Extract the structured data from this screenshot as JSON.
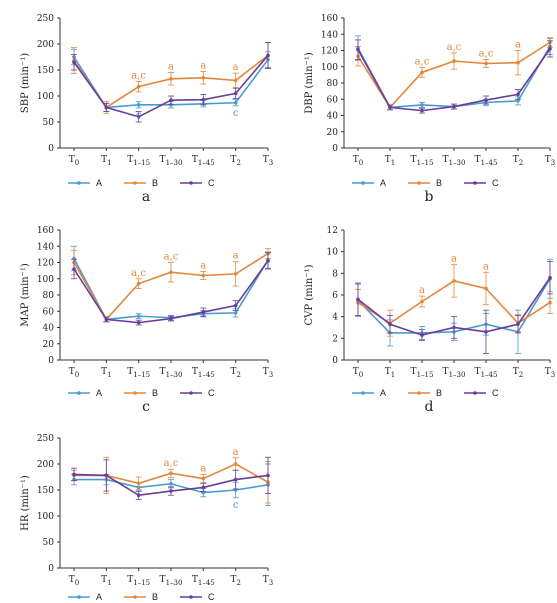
{
  "chart_data": [
    {
      "type": "line",
      "panel_label": "a",
      "ylabel": "SBP (min⁻¹)",
      "ylim": [
        0,
        250
      ],
      "yticks": [
        0,
        50,
        100,
        150,
        200,
        250
      ],
      "categories": [
        "T0",
        "T1",
        "T1-15",
        "T1-30",
        "T1-45",
        "T2",
        "T3"
      ],
      "series": [
        {
          "name": "A",
          "values": [
            175,
            78,
            83,
            83,
            85,
            87,
            170
          ],
          "errors": [
            15,
            8,
            6,
            6,
            6,
            6,
            15
          ]
        },
        {
          "name": "B",
          "values": [
            168,
            78,
            118,
            133,
            135,
            130,
            178
          ],
          "errors": [
            25,
            12,
            10,
            12,
            12,
            14,
            25
          ]
        },
        {
          "name": "C",
          "values": [
            165,
            78,
            60,
            92,
            93,
            105,
            178
          ],
          "errors": [
            15,
            8,
            10,
            8,
            10,
            10,
            25
          ]
        }
      ],
      "annotations": [
        {
          "x_index": 2,
          "text": "a,c",
          "series": "B"
        },
        {
          "x_index": 3,
          "text": "a",
          "series": "B"
        },
        {
          "x_index": 4,
          "text": "a",
          "series": "B"
        },
        {
          "x_index": 5,
          "text": "a",
          "series": "B"
        },
        {
          "x_index": 2,
          "text": "c",
          "series": "A"
        },
        {
          "x_index": 5,
          "text": "c",
          "series": "A"
        }
      ]
    },
    {
      "type": "line",
      "panel_label": "b",
      "ylabel": "DBP (min⁻¹)",
      "ylim": [
        0,
        160
      ],
      "yticks": [
        0,
        20,
        40,
        60,
        80,
        100,
        120,
        140,
        160
      ],
      "categories": [
        "T0",
        "T1",
        "T1-15",
        "T1-30",
        "T1-45",
        "T2",
        "T3"
      ],
      "series": [
        {
          "name": "A",
          "values": [
            123,
            50,
            53,
            51,
            56,
            58,
            125
          ],
          "errors": [
            15,
            3,
            3,
            3,
            4,
            5,
            10
          ]
        },
        {
          "name": "B",
          "values": [
            113,
            50,
            93,
            107,
            104,
            105,
            130
          ],
          "errors": [
            12,
            3,
            6,
            10,
            5,
            15,
            6
          ]
        },
        {
          "name": "C",
          "values": [
            121,
            50,
            46,
            51,
            59,
            66,
            122
          ],
          "errors": [
            12,
            3,
            3,
            3,
            5,
            6,
            10
          ]
        }
      ],
      "annotations": [
        {
          "x_index": 2,
          "text": "a,c",
          "series": "B"
        },
        {
          "x_index": 3,
          "text": "a,c",
          "series": "B"
        },
        {
          "x_index": 4,
          "text": "a,c",
          "series": "B"
        },
        {
          "x_index": 5,
          "text": "a",
          "series": "B"
        }
      ]
    },
    {
      "type": "line",
      "panel_label": "c",
      "ylabel": "MAP (min⁻¹)",
      "ylim": [
        0,
        160
      ],
      "yticks": [
        0,
        20,
        40,
        60,
        80,
        100,
        120,
        140,
        160
      ],
      "categories": [
        "T0",
        "T1",
        "T1-15",
        "T1-30",
        "T1-45",
        "T2",
        "T3"
      ],
      "series": [
        {
          "name": "A",
          "values": [
            125,
            50,
            54,
            52,
            57,
            58,
            123
          ],
          "errors": [
            15,
            3,
            3,
            3,
            4,
            5,
            10
          ]
        },
        {
          "name": "B",
          "values": [
            120,
            50,
            94,
            108,
            104,
            106,
            131
          ],
          "errors": [
            15,
            3,
            6,
            12,
            5,
            15,
            6
          ]
        },
        {
          "name": "C",
          "values": [
            112,
            50,
            46,
            51,
            59,
            67,
            122
          ],
          "errors": [
            12,
            3,
            3,
            3,
            5,
            6,
            10
          ]
        }
      ],
      "annotations": [
        {
          "x_index": 2,
          "text": "a,c",
          "series": "B"
        },
        {
          "x_index": 3,
          "text": "a,c",
          "series": "B"
        },
        {
          "x_index": 4,
          "text": "a",
          "series": "B"
        },
        {
          "x_index": 5,
          "text": "a",
          "series": "B"
        }
      ]
    },
    {
      "type": "line",
      "panel_label": "d",
      "ylabel": "CVP (min⁻¹)",
      "ylim": [
        0,
        12
      ],
      "yticks": [
        0,
        2,
        4,
        6,
        8,
        10,
        12
      ],
      "categories": [
        "T0",
        "T1",
        "T1-15",
        "T1-30",
        "T1-45",
        "T2",
        "T3"
      ],
      "series": [
        {
          "name": "A",
          "values": [
            5.5,
            2.5,
            2.5,
            2.6,
            3.3,
            2.6,
            7.5
          ],
          "errors": [
            1.5,
            1.2,
            0.6,
            0.8,
            1.0,
            2.0,
            1.8
          ]
        },
        {
          "name": "B",
          "values": [
            5.3,
            3.4,
            5.4,
            7.3,
            6.6,
            3.4,
            5.3
          ],
          "errors": [
            1.2,
            1.2,
            0.5,
            1.5,
            1.5,
            0.8,
            1.0
          ]
        },
        {
          "name": "C",
          "values": [
            5.6,
            3.3,
            2.3,
            3.0,
            2.6,
            3.3,
            7.6
          ],
          "errors": [
            1.5,
            0.8,
            0.5,
            1.0,
            2.0,
            0.8,
            1.5
          ]
        }
      ],
      "annotations": [
        {
          "x_index": 2,
          "text": "a",
          "series": "B"
        },
        {
          "x_index": 3,
          "text": "a",
          "series": "B"
        },
        {
          "x_index": 4,
          "text": "a",
          "series": "B"
        }
      ]
    },
    {
      "type": "line",
      "panel_label": "",
      "ylabel": "HR (min⁻¹)",
      "ylim": [
        0,
        250
      ],
      "yticks": [
        0,
        50,
        100,
        150,
        200,
        250
      ],
      "categories": [
        "T0",
        "T1",
        "T1-15",
        "T1-30",
        "T1-45",
        "T2",
        "T3"
      ],
      "series": [
        {
          "name": "A",
          "values": [
            170,
            170,
            155,
            162,
            145,
            150,
            160
          ],
          "errors": [
            10,
            10,
            8,
            8,
            8,
            15,
            40
          ]
        },
        {
          "name": "B",
          "values": [
            178,
            178,
            163,
            182,
            172,
            200,
            165
          ],
          "errors": [
            10,
            35,
            12,
            8,
            8,
            12,
            40
          ]
        },
        {
          "name": "C",
          "values": [
            180,
            178,
            140,
            148,
            155,
            170,
            178
          ],
          "errors": [
            12,
            30,
            8,
            8,
            8,
            18,
            35
          ]
        }
      ],
      "annotations": [
        {
          "x_index": 3,
          "text": "a,c",
          "series": "B"
        },
        {
          "x_index": 4,
          "text": "a",
          "series": "B"
        },
        {
          "x_index": 5,
          "text": "a",
          "series": "B"
        },
        {
          "x_index": 5,
          "text": "c",
          "series": "A"
        }
      ]
    }
  ],
  "legend": [
    "A",
    "B",
    "C"
  ],
  "colors": {
    "A": "#4a9bd1",
    "B": "#e4873a",
    "C": "#6a3d9a"
  }
}
